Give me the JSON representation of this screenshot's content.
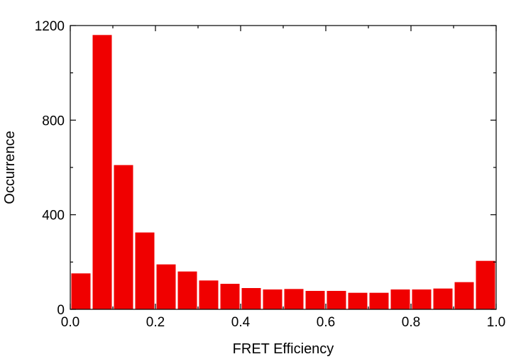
{
  "chart_data": {
    "type": "bar",
    "title": "",
    "xlabel": "FRET Efficiency",
    "ylabel": "Occurrence",
    "xlim": [
      0.0,
      1.0
    ],
    "ylim": [
      0,
      1200
    ],
    "bar_color": "#f00000",
    "bin_width": 0.05,
    "bins": [
      0.025,
      0.075,
      0.125,
      0.175,
      0.225,
      0.275,
      0.325,
      0.375,
      0.425,
      0.475,
      0.525,
      0.575,
      0.625,
      0.675,
      0.725,
      0.775,
      0.825,
      0.875,
      0.925,
      0.975
    ],
    "values": [
      152,
      1160,
      610,
      325,
      190,
      160,
      122,
      108,
      90,
      84,
      86,
      78,
      78,
      70,
      70,
      84,
      84,
      88,
      115,
      205
    ],
    "xticks": [
      {
        "value": 0.0,
        "label": "0.0"
      },
      {
        "value": 0.2,
        "label": "0.2"
      },
      {
        "value": 0.4,
        "label": "0.4"
      },
      {
        "value": 0.6,
        "label": "0.6"
      },
      {
        "value": 0.8,
        "label": "0.8"
      },
      {
        "value": 1.0,
        "label": "1.0"
      }
    ],
    "yticks": [
      {
        "value": 0,
        "label": "0"
      },
      {
        "value": 400,
        "label": "400"
      },
      {
        "value": 800,
        "label": "800"
      },
      {
        "value": 1200,
        "label": "1200"
      }
    ],
    "minor_yticks": [
      200,
      600,
      1000
    ],
    "minor_xticks": [
      0.1,
      0.3,
      0.5,
      0.7,
      0.9
    ],
    "grid": false,
    "legend": "none"
  }
}
